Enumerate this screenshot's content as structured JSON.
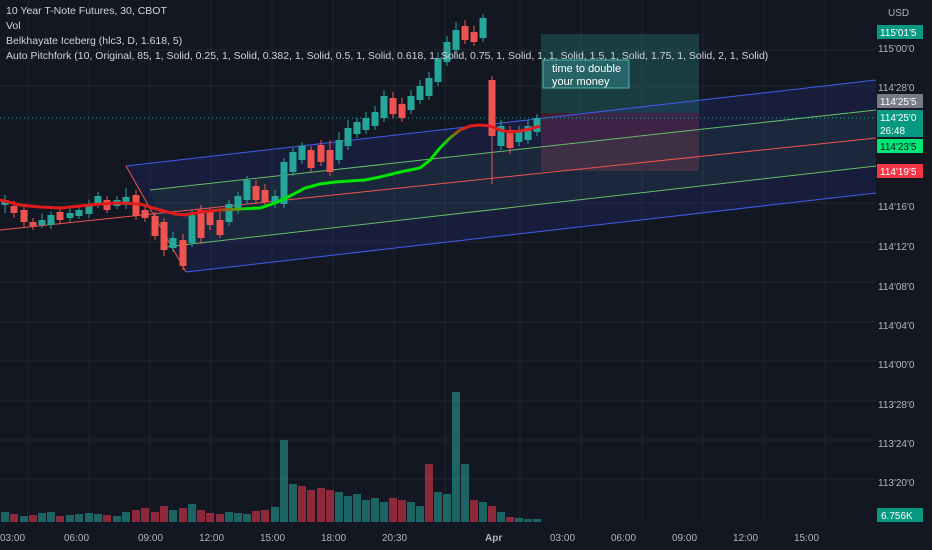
{
  "legend": {
    "symbol": "10 Year T-Note Futures, 30, CBOT",
    "vol": "Vol",
    "iceberg": "Belkhayate Iceberg (hlc3, D, 1.618, 5)",
    "pitchfork": "Auto Pitchfork (10, Original, 85, 1, Solid, 0.25, 1, Solid, 0.382, 1, Solid, 0.5, 1, Solid, 0.618, 1, Solid, 0.75, 1, Solid, 1, 1, Solid, 1.5, 1, Solid, 1.75, 1, Solid, 2, 1, Solid)"
  },
  "currency": "USD",
  "price_axis": [
    "115'00'0",
    "114'28'0",
    "114'16'0",
    "114'12'0",
    "114'08'0",
    "114'04'0",
    "114'00'0",
    "113'28'0",
    "113'24'0",
    "113'20'0"
  ],
  "price_tags": [
    {
      "label": "115'01'5",
      "bg": "#089981",
      "fg": "#ffffff"
    },
    {
      "label": "114'25'5",
      "bg": "#787b86",
      "fg": "#ffffff"
    },
    {
      "label": "114'25'0",
      "bg": "#089981",
      "fg": "#ffffff"
    },
    {
      "label": "26:48",
      "bg": "#089981",
      "fg": "#ffffff"
    },
    {
      "label": "114'23'5",
      "bg": "#00e676",
      "fg": "#131722"
    },
    {
      "label": "114'19'5",
      "bg": "#f23645",
      "fg": "#ffffff"
    }
  ],
  "volume_tag": {
    "label": "6.756K",
    "bg": "#089981",
    "fg": "#ffffff"
  },
  "time_axis": [
    "03:00",
    "06:00",
    "09:00",
    "12:00",
    "15:00",
    "18:00",
    "20:30",
    "Apr",
    "03:00",
    "06:00",
    "09:00",
    "12:00",
    "15:00"
  ],
  "note": {
    "line1": "time to double",
    "line2": "your money"
  },
  "colors": {
    "up": "#26a69a",
    "down": "#ef5350",
    "iceberg_green": "#00e600",
    "iceberg_red": "#e01b1b"
  }
}
